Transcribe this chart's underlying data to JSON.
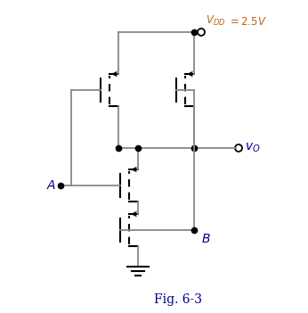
{
  "bg_color": "#ffffff",
  "wire_color": "#888888",
  "black": "#000000",
  "blue": "#00008B",
  "orange": "#B8651A",
  "fig_width": 3.46,
  "fig_height": 3.51,
  "dpi": 100
}
